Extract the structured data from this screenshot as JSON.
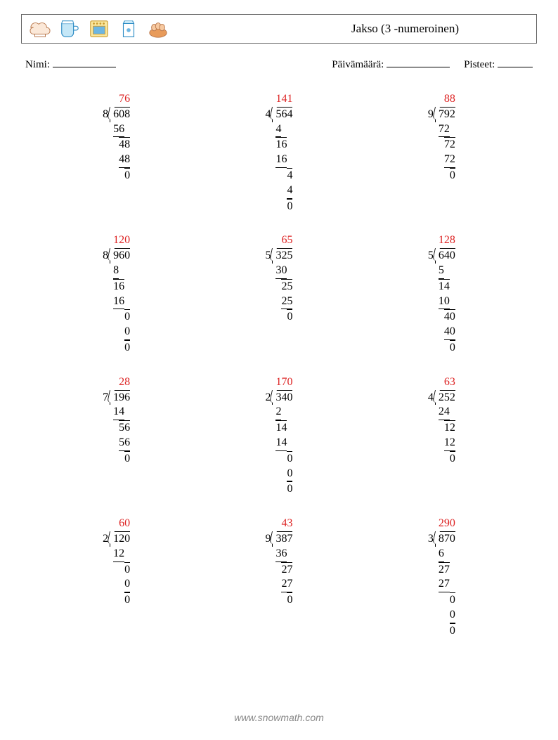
{
  "header": {
    "title": "Jakso (3 -numeroinen)",
    "icons": [
      "chef-hat",
      "cup",
      "oven",
      "milk",
      "eggs"
    ]
  },
  "info": {
    "name_label": "Nimi:",
    "date_label": "Päivämäärä:",
    "score_label": "Pisteet:"
  },
  "colors": {
    "answer": "#dd2222",
    "text": "#000000",
    "border": "#666666",
    "footer": "#888888"
  },
  "footer": "www.snowmath.com",
  "problems": [
    {
      "divisor": "8",
      "dividend": "608",
      "quotient": "76",
      "steps": [
        {
          "t": "sub",
          "v": "56",
          "align": 2
        },
        {
          "t": "bar",
          "v": "48",
          "align": 3
        },
        {
          "t": "sub",
          "v": "48",
          "align": 3
        },
        {
          "t": "bar",
          "v": "0",
          "align": 3
        }
      ]
    },
    {
      "divisor": "4",
      "dividend": "564",
      "quotient": "141",
      "steps": [
        {
          "t": "sub",
          "v": "4",
          "align": 1
        },
        {
          "t": "bar",
          "v": "16",
          "align": 2
        },
        {
          "t": "sub",
          "v": "16",
          "align": 2
        },
        {
          "t": "bar",
          "v": "4",
          "align": 3
        },
        {
          "t": "sub",
          "v": "4",
          "align": 3
        },
        {
          "t": "bar",
          "v": "0",
          "align": 3
        }
      ]
    },
    {
      "divisor": "9",
      "dividend": "792",
      "quotient": "88",
      "steps": [
        {
          "t": "sub",
          "v": "72",
          "align": 2
        },
        {
          "t": "bar",
          "v": "72",
          "align": 3
        },
        {
          "t": "sub",
          "v": "72",
          "align": 3
        },
        {
          "t": "bar",
          "v": "0",
          "align": 3
        }
      ]
    },
    {
      "divisor": "8",
      "dividend": "960",
      "quotient": "120",
      "steps": [
        {
          "t": "sub",
          "v": "8",
          "align": 1
        },
        {
          "t": "bar",
          "v": "16",
          "align": 2
        },
        {
          "t": "sub",
          "v": "16",
          "align": 2
        },
        {
          "t": "bar",
          "v": "0",
          "align": 3
        },
        {
          "t": "sub",
          "v": "0",
          "align": 3
        },
        {
          "t": "bar",
          "v": "0",
          "align": 3
        }
      ]
    },
    {
      "divisor": "5",
      "dividend": "325",
      "quotient": "65",
      "steps": [
        {
          "t": "sub",
          "v": "30",
          "align": 2
        },
        {
          "t": "bar",
          "v": "25",
          "align": 3
        },
        {
          "t": "sub",
          "v": "25",
          "align": 3
        },
        {
          "t": "bar",
          "v": "0",
          "align": 3
        }
      ]
    },
    {
      "divisor": "5",
      "dividend": "640",
      "quotient": "128",
      "steps": [
        {
          "t": "sub",
          "v": "5",
          "align": 1
        },
        {
          "t": "bar",
          "v": "14",
          "align": 2
        },
        {
          "t": "sub",
          "v": "10",
          "align": 2
        },
        {
          "t": "bar",
          "v": "40",
          "align": 3
        },
        {
          "t": "sub",
          "v": "40",
          "align": 3
        },
        {
          "t": "bar",
          "v": "0",
          "align": 3
        }
      ]
    },
    {
      "divisor": "7",
      "dividend": "196",
      "quotient": "28",
      "steps": [
        {
          "t": "sub",
          "v": "14",
          "align": 2
        },
        {
          "t": "bar",
          "v": "56",
          "align": 3
        },
        {
          "t": "sub",
          "v": "56",
          "align": 3
        },
        {
          "t": "bar",
          "v": "0",
          "align": 3
        }
      ]
    },
    {
      "divisor": "2",
      "dividend": "340",
      "quotient": "170",
      "steps": [
        {
          "t": "sub",
          "v": "2",
          "align": 1
        },
        {
          "t": "bar",
          "v": "14",
          "align": 2
        },
        {
          "t": "sub",
          "v": "14",
          "align": 2
        },
        {
          "t": "bar",
          "v": "0",
          "align": 3
        },
        {
          "t": "sub",
          "v": "0",
          "align": 3
        },
        {
          "t": "bar",
          "v": "0",
          "align": 3
        }
      ]
    },
    {
      "divisor": "4",
      "dividend": "252",
      "quotient": "63",
      "steps": [
        {
          "t": "sub",
          "v": "24",
          "align": 2
        },
        {
          "t": "bar",
          "v": "12",
          "align": 3
        },
        {
          "t": "sub",
          "v": "12",
          "align": 3
        },
        {
          "t": "bar",
          "v": "0",
          "align": 3
        }
      ]
    },
    {
      "divisor": "2",
      "dividend": "120",
      "quotient": "60",
      "steps": [
        {
          "t": "sub",
          "v": "12",
          "align": 2
        },
        {
          "t": "bar",
          "v": "0",
          "align": 3
        },
        {
          "t": "sub",
          "v": "0",
          "align": 3
        },
        {
          "t": "bar",
          "v": "0",
          "align": 3
        }
      ]
    },
    {
      "divisor": "9",
      "dividend": "387",
      "quotient": "43",
      "steps": [
        {
          "t": "sub",
          "v": "36",
          "align": 2
        },
        {
          "t": "bar",
          "v": "27",
          "align": 3
        },
        {
          "t": "sub",
          "v": "27",
          "align": 3
        },
        {
          "t": "bar",
          "v": "0",
          "align": 3
        }
      ]
    },
    {
      "divisor": "3",
      "dividend": "870",
      "quotient": "290",
      "steps": [
        {
          "t": "sub",
          "v": "6",
          "align": 1
        },
        {
          "t": "bar",
          "v": "27",
          "align": 2
        },
        {
          "t": "sub",
          "v": "27",
          "align": 2
        },
        {
          "t": "bar",
          "v": "0",
          "align": 3
        },
        {
          "t": "sub",
          "v": "0",
          "align": 3
        },
        {
          "t": "bar",
          "v": "0",
          "align": 3
        }
      ]
    }
  ]
}
